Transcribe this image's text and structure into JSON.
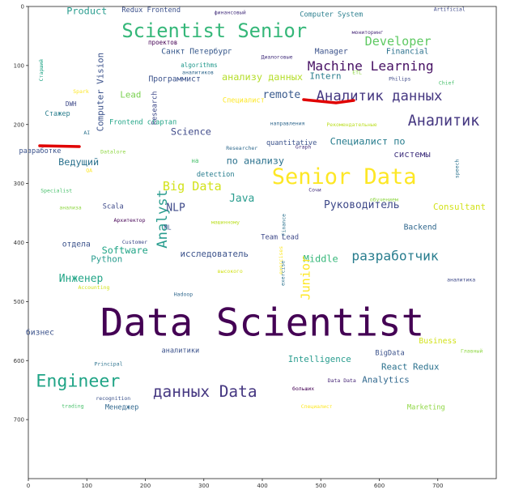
{
  "chart_data": {
    "type": "wordcloud",
    "xlim": [
      0,
      800
    ],
    "ylim": [
      800,
      0
    ],
    "x_ticks": [
      "0",
      "100",
      "200",
      "300",
      "400",
      "500",
      "600",
      "700"
    ],
    "y_ticks": [
      "0",
      "100",
      "200",
      "300",
      "400",
      "500",
      "600",
      "700"
    ],
    "words": [
      {
        "text": "Product",
        "x": 100,
        "y": 8,
        "size": 11,
        "color": "#2a9d8f",
        "rot": 0
      },
      {
        "text": "Redux Frontend",
        "x": 210,
        "y": 6,
        "size": 8,
        "color": "#3a4f8a",
        "rot": 0
      },
      {
        "text": "финансовый",
        "x": 345,
        "y": 10,
        "size": 6,
        "color": "#46327e",
        "rot": 0
      },
      {
        "text": "Computer System",
        "x": 518,
        "y": 14,
        "size": 8,
        "color": "#2c7f8e",
        "rot": 0
      },
      {
        "text": "Artificial",
        "x": 720,
        "y": 5,
        "size": 6,
        "color": "#3e4989",
        "rot": 0
      },
      {
        "text": "Scientist Senior",
        "x": 318,
        "y": 43,
        "size": 22,
        "color": "#35b779",
        "rot": 0
      },
      {
        "text": "мониторинг",
        "x": 580,
        "y": 44,
        "size": 6,
        "color": "#482878",
        "rot": 0
      },
      {
        "text": "Developer",
        "x": 632,
        "y": 60,
        "size": 14,
        "color": "#5ec962",
        "rot": 0
      },
      {
        "text": "проектов",
        "x": 230,
        "y": 62,
        "size": 7,
        "color": "#440154",
        "rot": 0
      },
      {
        "text": "Санкт Петербург",
        "x": 288,
        "y": 76,
        "size": 9,
        "color": "#38598c",
        "rot": 0
      },
      {
        "text": "Manager",
        "x": 518,
        "y": 76,
        "size": 9,
        "color": "#3b528b",
        "rot": 0
      },
      {
        "text": "Financial",
        "x": 648,
        "y": 76,
        "size": 9,
        "color": "#2c728e",
        "rot": 0
      },
      {
        "text": "Диалоговые",
        "x": 425,
        "y": 86,
        "size": 6,
        "color": "#46327e",
        "rot": 0
      },
      {
        "text": "algorithms",
        "x": 292,
        "y": 100,
        "size": 7,
        "color": "#1f988b",
        "rot": 0
      },
      {
        "text": "Machine Learning",
        "x": 585,
        "y": 102,
        "size": 15,
        "color": "#471164",
        "rot": 0
      },
      {
        "text": "Старший",
        "x": 22,
        "y": 108,
        "size": 6,
        "color": "#20a486",
        "rot": 270
      },
      {
        "text": "аналитиков",
        "x": 290,
        "y": 112,
        "size": 6,
        "color": "#31688e",
        "rot": 0
      },
      {
        "text": "Computer Vision",
        "x": 124,
        "y": 145,
        "size": 10,
        "color": "#3b528b",
        "rot": 270
      },
      {
        "text": "Программист",
        "x": 250,
        "y": 123,
        "size": 9,
        "color": "#3b528b",
        "rot": 0
      },
      {
        "text": "анализу данных",
        "x": 400,
        "y": 120,
        "size": 11,
        "color": "#b5de2b",
        "rot": 0
      },
      {
        "text": "Intern",
        "x": 508,
        "y": 119,
        "size": 10,
        "color": "#2c7f8e",
        "rot": 0
      },
      {
        "text": "Philips",
        "x": 635,
        "y": 123,
        "size": 6,
        "color": "#3e4989",
        "rot": 0
      },
      {
        "text": "ETL",
        "x": 562,
        "y": 112,
        "size": 6,
        "color": "#8fd744",
        "rot": 0
      },
      {
        "text": "Chief",
        "x": 715,
        "y": 130,
        "size": 6,
        "color": "#4ac16d",
        "rot": 0
      },
      {
        "text": "Research",
        "x": 216,
        "y": 172,
        "size": 8,
        "color": "#3e4989",
        "rot": 270
      },
      {
        "text": "Lead",
        "x": 175,
        "y": 150,
        "size": 10,
        "color": "#7ad151",
        "rot": 0
      },
      {
        "text": "Spark",
        "x": 90,
        "y": 144,
        "size": 6,
        "color": "#fde725",
        "rot": 0
      },
      {
        "text": "DWH",
        "x": 73,
        "y": 166,
        "size": 7,
        "color": "#3e4989",
        "rot": 0
      },
      {
        "text": "remote",
        "x": 433,
        "y": 150,
        "size": 12,
        "color": "#38598c",
        "rot": 0
      },
      {
        "text": "Аналитик данных",
        "x": 600,
        "y": 152,
        "size": 16,
        "color": "#453781",
        "rot": 0
      },
      {
        "text": "Специалист",
        "x": 368,
        "y": 159,
        "size": 8,
        "color": "#fde725",
        "rot": 0
      },
      {
        "text": "Стажер",
        "x": 50,
        "y": 182,
        "size": 8,
        "color": "#2c7f8e",
        "rot": 0
      },
      {
        "text": "Frontend стартап",
        "x": 196,
        "y": 196,
        "size": 8,
        "color": "#20a486",
        "rot": 0
      },
      {
        "text": "направления",
        "x": 443,
        "y": 198,
        "size": 6,
        "color": "#31688e",
        "rot": 0
      },
      {
        "text": "Рекомендательные",
        "x": 553,
        "y": 200,
        "size": 6,
        "color": "#bddf26",
        "rot": 0
      },
      {
        "text": "Аналитик",
        "x": 710,
        "y": 195,
        "size": 17,
        "color": "#453781",
        "rot": 0
      },
      {
        "text": "AI",
        "x": 100,
        "y": 214,
        "size": 6,
        "color": "#2c728e",
        "rot": 0
      },
      {
        "text": "Science",
        "x": 278,
        "y": 213,
        "size": 11,
        "color": "#3e4989",
        "rot": 0
      },
      {
        "text": "quantitative",
        "x": 450,
        "y": 231,
        "size": 8,
        "color": "#3b528b",
        "rot": 0
      },
      {
        "text": "Специалист по",
        "x": 580,
        "y": 229,
        "size": 11,
        "color": "#287d8e",
        "rot": 0
      },
      {
        "text": "Researcher",
        "x": 365,
        "y": 240,
        "size": 6,
        "color": "#306a8e",
        "rot": 0
      },
      {
        "text": "Graph",
        "x": 470,
        "y": 238,
        "size": 6,
        "color": "#46327e",
        "rot": 0
      },
      {
        "text": "Datalore",
        "x": 145,
        "y": 246,
        "size": 6,
        "color": "#8fd744",
        "rot": 0
      },
      {
        "text": "разработке",
        "x": 20,
        "y": 245,
        "size": 8,
        "color": "#3b528b",
        "rot": 0
      },
      {
        "text": "системы",
        "x": 656,
        "y": 251,
        "size": 10,
        "color": "#453781",
        "rot": 0
      },
      {
        "text": "Ведущий",
        "x": 86,
        "y": 264,
        "size": 11,
        "color": "#2c728e",
        "rot": 0
      },
      {
        "text": "на",
        "x": 285,
        "y": 262,
        "size": 7,
        "color": "#4ac16d",
        "rot": 0
      },
      {
        "text": "по анализу",
        "x": 388,
        "y": 262,
        "size": 11,
        "color": "#2c728e",
        "rot": 0
      },
      {
        "text": "speech",
        "x": 733,
        "y": 275,
        "size": 6,
        "color": "#2c728e",
        "rot": 270
      },
      {
        "text": "QA",
        "x": 104,
        "y": 278,
        "size": 6,
        "color": "#fde725",
        "rot": 0
      },
      {
        "text": "detection",
        "x": 320,
        "y": 285,
        "size": 8,
        "color": "#287d8e",
        "rot": 0
      },
      {
        "text": "Senior Data",
        "x": 540,
        "y": 290,
        "size": 25,
        "color": "#fde725",
        "rot": 0
      },
      {
        "text": "Big Data",
        "x": 280,
        "y": 305,
        "size": 14,
        "color": "#d2e21b",
        "rot": 0
      },
      {
        "text": "Specialist",
        "x": 48,
        "y": 312,
        "size": 6,
        "color": "#4ac16d",
        "rot": 0
      },
      {
        "text": "Сочи",
        "x": 490,
        "y": 311,
        "size": 6,
        "color": "#46327e",
        "rot": 0
      },
      {
        "text": "Java",
        "x": 365,
        "y": 326,
        "size": 12,
        "color": "#2a9d8f",
        "rot": 0
      },
      {
        "text": "обучением",
        "x": 608,
        "y": 327,
        "size": 6,
        "color": "#8fd744",
        "rot": 0
      },
      {
        "text": "Analyst",
        "x": 230,
        "y": 360,
        "size": 16,
        "color": "#2a9d8f",
        "rot": 270
      },
      {
        "text": "NLP",
        "x": 252,
        "y": 342,
        "size": 12,
        "color": "#3e4989",
        "rot": 0
      },
      {
        "text": "Руководитель",
        "x": 570,
        "y": 337,
        "size": 12,
        "color": "#3e4989",
        "rot": 0
      },
      {
        "text": "Consultant",
        "x": 737,
        "y": 340,
        "size": 10,
        "color": "#d2e21b",
        "rot": 0
      },
      {
        "text": "Scala",
        "x": 145,
        "y": 339,
        "size": 8,
        "color": "#3e4989",
        "rot": 0
      },
      {
        "text": "анализа",
        "x": 72,
        "y": 341,
        "size": 6,
        "color": "#8fd744",
        "rot": 0
      },
      {
        "text": "Архитектор",
        "x": 173,
        "y": 362,
        "size": 6,
        "color": "#440154",
        "rot": 0
      },
      {
        "text": "машинному",
        "x": 337,
        "y": 366,
        "size": 6,
        "color": "#bddf26",
        "rot": 0
      },
      {
        "text": "Finance",
        "x": 437,
        "y": 370,
        "size": 6,
        "color": "#2c728e",
        "rot": 270
      },
      {
        "text": "ML",
        "x": 238,
        "y": 375,
        "size": 7,
        "color": "#3b528b",
        "rot": 0
      },
      {
        "text": "Backend",
        "x": 670,
        "y": 374,
        "size": 9,
        "color": "#31688e",
        "rot": 0
      },
      {
        "text": "Team Lead",
        "x": 430,
        "y": 391,
        "size": 8,
        "color": "#3e4989",
        "rot": 0
      },
      {
        "text": "отдела",
        "x": 82,
        "y": 403,
        "size": 9,
        "color": "#3b528b",
        "rot": 0
      },
      {
        "text": "Customer",
        "x": 182,
        "y": 399,
        "size": 6,
        "color": "#3e4989",
        "rot": 0
      },
      {
        "text": "Software",
        "x": 165,
        "y": 414,
        "size": 11,
        "color": "#20a486",
        "rot": 0
      },
      {
        "text": "исследователь",
        "x": 318,
        "y": 420,
        "size": 10,
        "color": "#3b528b",
        "rot": 0
      },
      {
        "text": "разработчик",
        "x": 627,
        "y": 424,
        "size": 15,
        "color": "#287d8e",
        "rot": 0
      },
      {
        "text": "Python",
        "x": 134,
        "y": 429,
        "size": 10,
        "color": "#2a9d8f",
        "rot": 0
      },
      {
        "text": "Middle",
        "x": 500,
        "y": 428,
        "size": 11,
        "color": "#35b779",
        "rot": 0
      },
      {
        "text": "exercises",
        "x": 432,
        "y": 430,
        "size": 6,
        "color": "#fde725",
        "rot": 270
      },
      {
        "text": "Junior",
        "x": 475,
        "y": 460,
        "size": 14,
        "color": "#fde725",
        "rot": 270
      },
      {
        "text": "exercise",
        "x": 435,
        "y": 452,
        "size": 6,
        "color": "#2c728e",
        "rot": 270
      },
      {
        "text": "высокого",
        "x": 345,
        "y": 449,
        "size": 6,
        "color": "#d2e21b",
        "rot": 0
      },
      {
        "text": "Инженер",
        "x": 90,
        "y": 462,
        "size": 12,
        "color": "#20a486",
        "rot": 0
      },
      {
        "text": "аналитика",
        "x": 740,
        "y": 463,
        "size": 6,
        "color": "#3e4989",
        "rot": 0
      },
      {
        "text": "Accounting",
        "x": 112,
        "y": 476,
        "size": 6,
        "color": "#d2e21b",
        "rot": 0
      },
      {
        "text": "Hadoop",
        "x": 265,
        "y": 488,
        "size": 6,
        "color": "#31688e",
        "rot": 0
      },
      {
        "text": "Data Scientist",
        "x": 400,
        "y": 540,
        "size": 44,
        "color": "#440154",
        "rot": 0
      },
      {
        "text": "бизнес",
        "x": 20,
        "y": 552,
        "size": 9,
        "color": "#3b528b",
        "rot": 0
      },
      {
        "text": "Business",
        "x": 700,
        "y": 567,
        "size": 9,
        "color": "#d2e21b",
        "rot": 0
      },
      {
        "text": "аналитики",
        "x": 260,
        "y": 583,
        "size": 8,
        "color": "#3b528b",
        "rot": 0
      },
      {
        "text": "Главный",
        "x": 758,
        "y": 584,
        "size": 6,
        "color": "#8fd744",
        "rot": 0
      },
      {
        "text": "BigData",
        "x": 618,
        "y": 587,
        "size": 8,
        "color": "#3b528b",
        "rot": 0
      },
      {
        "text": "Intelligence",
        "x": 498,
        "y": 598,
        "size": 10,
        "color": "#2a9d8f",
        "rot": 0
      },
      {
        "text": "React Redux",
        "x": 653,
        "y": 611,
        "size": 10,
        "color": "#2c728e",
        "rot": 0
      },
      {
        "text": "Principal",
        "x": 137,
        "y": 606,
        "size": 6,
        "color": "#2c728e",
        "rot": 0
      },
      {
        "text": "Engineer",
        "x": 85,
        "y": 636,
        "size": 20,
        "color": "#20a486",
        "rot": 0
      },
      {
        "text": "Data Data",
        "x": 536,
        "y": 634,
        "size": 6,
        "color": "#482878",
        "rot": 0
      },
      {
        "text": "Analytics",
        "x": 611,
        "y": 633,
        "size": 10,
        "color": "#31688e",
        "rot": 0
      },
      {
        "text": "данных Data",
        "x": 302,
        "y": 654,
        "size": 18,
        "color": "#453781",
        "rot": 0
      },
      {
        "text": "больших",
        "x": 470,
        "y": 648,
        "size": 6,
        "color": "#440154",
        "rot": 0
      },
      {
        "text": "recognition",
        "x": 145,
        "y": 664,
        "size": 6,
        "color": "#3b528b",
        "rot": 0
      },
      {
        "text": "trading",
        "x": 76,
        "y": 677,
        "size": 6,
        "color": "#4ac16d",
        "rot": 0
      },
      {
        "text": "Менеджер",
        "x": 160,
        "y": 679,
        "size": 8,
        "color": "#31688e",
        "rot": 0
      },
      {
        "text": "Специалист",
        "x": 493,
        "y": 678,
        "size": 6,
        "color": "#fde725",
        "rot": 0
      },
      {
        "text": "Marketing",
        "x": 680,
        "y": 679,
        "size": 8,
        "color": "#8fd744",
        "rot": 0
      }
    ]
  }
}
